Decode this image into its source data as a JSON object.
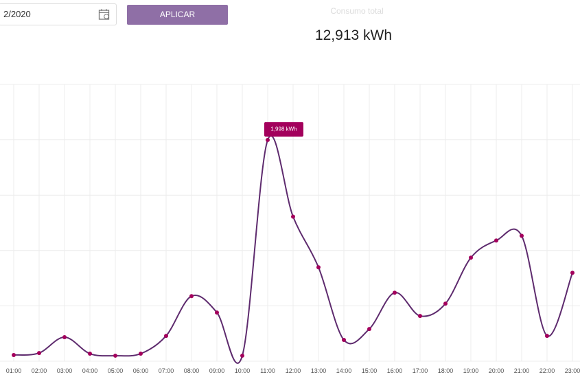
{
  "controls": {
    "date": "2/2020",
    "button": "APLICAR"
  },
  "summary": {
    "label": "Consumo total",
    "value": "12,913 kWh"
  },
  "chart_data": {
    "type": "line",
    "categories": [
      "01:00",
      "02:00",
      "03:00",
      "04:00",
      "05:00",
      "06:00",
      "07:00",
      "08:00",
      "09:00",
      "10:00",
      "11:00",
      "12:00",
      "13:00",
      "14:00",
      "15:00",
      "16:00",
      "17:00",
      "18:00",
      "19:00",
      "20:00",
      "21:00",
      "22:00",
      "23:00"
    ],
    "series": [
      {
        "color": "#5e2b6e",
        "marker_color": "#a3005c",
        "values": [
          56,
          74,
          217,
          68,
          50,
          68,
          229,
          588,
          440,
          50,
          1998,
          1306,
          848,
          192,
          291,
          619,
          409,
          520,
          935,
          1090,
          1133,
          229,
          799
        ],
        "value_labels": [
          null,
          null,
          null,
          null,
          null,
          null,
          null,
          null,
          null,
          null,
          "1,998 kWh",
          null,
          null,
          null,
          null,
          null,
          null,
          null,
          null,
          null,
          null,
          null,
          null
        ]
      }
    ],
    "ylim": [
      0,
      2500
    ],
    "yticks": [
      0,
      500,
      1000,
      1500,
      2000,
      2500
    ],
    "grid": true
  }
}
